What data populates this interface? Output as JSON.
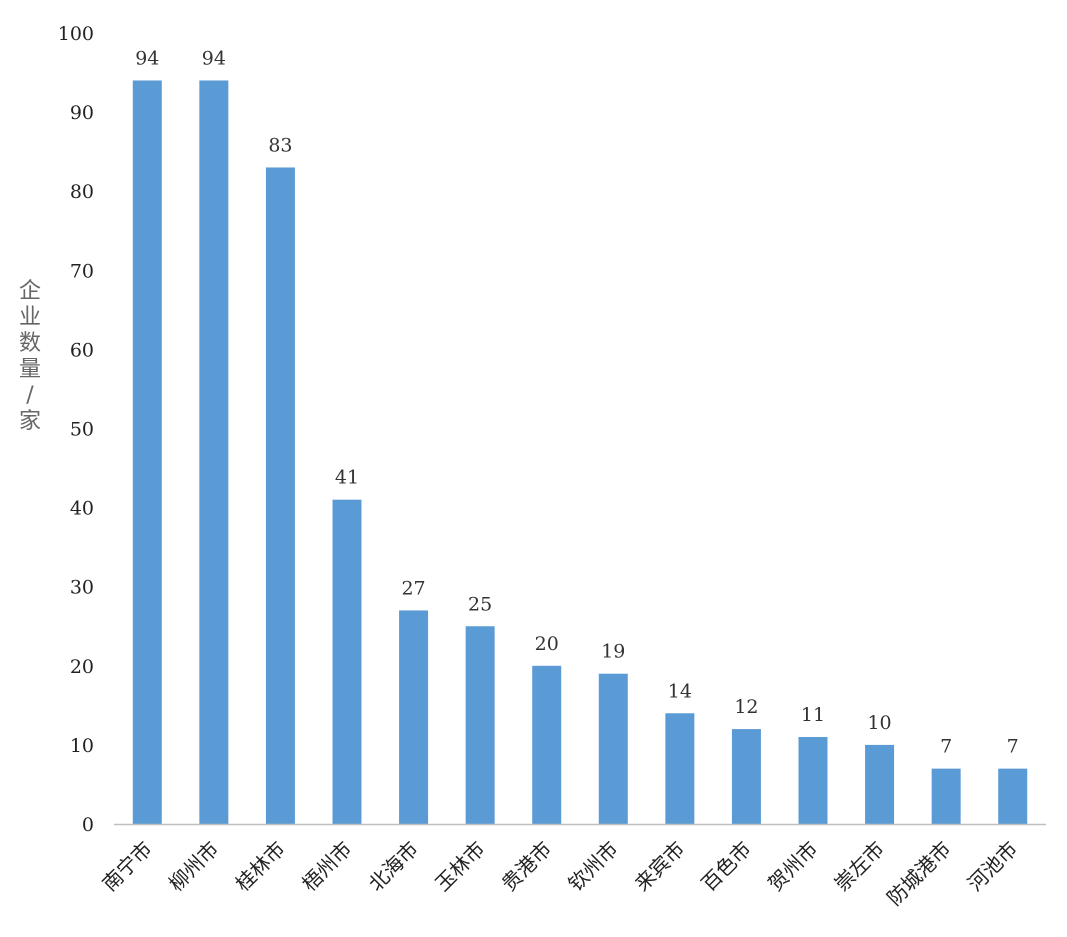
{
  "chart_data": {
    "type": "bar",
    "title": "",
    "xlabel": "",
    "ylabel": "企业数量/家",
    "ylim": [
      0,
      100
    ],
    "yticks": [
      0,
      10,
      20,
      30,
      40,
      50,
      60,
      70,
      80,
      90,
      100
    ],
    "grid": false,
    "categories": [
      "南宁市",
      "柳州市",
      "桂林市",
      "梧州市",
      "北海市",
      "玉林市",
      "贵港市",
      "钦州市",
      "来宾市",
      "百色市",
      "贺州市",
      "崇左市",
      "防城港市",
      "河池市"
    ],
    "values": [
      94,
      94,
      83,
      41,
      27,
      25,
      20,
      19,
      14,
      12,
      11,
      10,
      7,
      7
    ],
    "bar_color": "#5B9BD5",
    "axis_color": "#BFBFBF"
  }
}
